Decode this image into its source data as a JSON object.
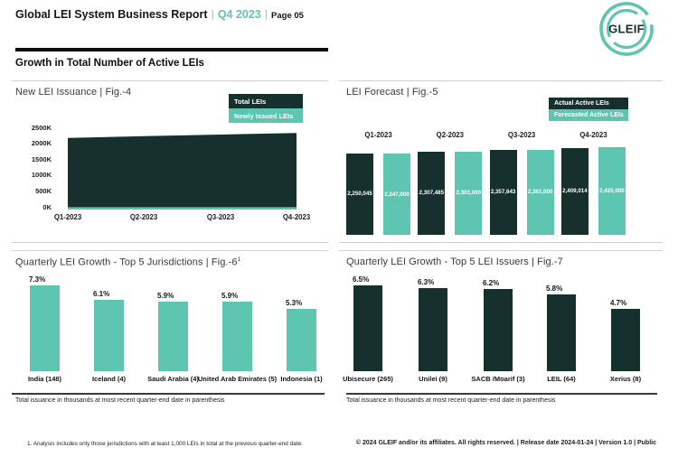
{
  "header": {
    "title": "Global LEI System Business Report",
    "separator": "|",
    "period": "Q4 2023",
    "page_label": "Page 05",
    "logo_text": "GLEIF"
  },
  "section_title": "Growth in Total Number of Active LEIs",
  "colors": {
    "dark": "#16302e",
    "teal": "#5ec5b1"
  },
  "panels": {
    "issuance": {
      "title": "New LEI Issuance | Fig.-4",
      "legend": [
        "Total LEIs",
        "Newly Issued LEIs"
      ],
      "y_ticks": [
        "2500K",
        "2000K",
        "1500K",
        "1000K",
        "500K",
        "0K"
      ],
      "x_ticks": [
        "Q1-2023",
        "Q2-2023",
        "Q3-2023",
        "Q4-2023"
      ]
    },
    "forecast": {
      "title": "LEI Forecast | Fig.-5",
      "legend": [
        "Actual Active LEIs",
        "Forecasted Active LEIs"
      ]
    },
    "jurisdictions": {
      "title": "Quarterly LEI Growth - Top 5 Jurisdictions | Fig.-6",
      "title_superscript": "1",
      "note": "Total issuance in thousands at most recent quarter-end date in parenthesis"
    },
    "issuers": {
      "title": "Quarterly LEI Growth - Top 5 LEI Issuers | Fig.-7",
      "note": "Total issuance in thousands at most recent quarter-end date in parenthesis"
    }
  },
  "chart_data": [
    {
      "type": "area",
      "title": "New LEI Issuance",
      "fig": "Fig.-4",
      "x": [
        "Q1-2023",
        "Q2-2023",
        "Q3-2023",
        "Q4-2023"
      ],
      "series": [
        {
          "name": "Total LEIs",
          "values": [
            2250045,
            2307485,
            2357643,
            2409014
          ]
        },
        {
          "name": "Newly Issued LEIs",
          "values": [
            60000,
            60000,
            60000,
            60000
          ],
          "estimated": true
        }
      ],
      "ylim": [
        0,
        2500000
      ],
      "y_tick_labels": [
        "0K",
        "500K",
        "1000K",
        "1500K",
        "2000K",
        "2500K"
      ],
      "legend_position": "top-right",
      "grid": false
    },
    {
      "type": "bar",
      "title": "LEI Forecast",
      "fig": "Fig.-5",
      "categories": [
        "Q1-2023",
        "Q2-2023",
        "Q3-2023",
        "Q4-2023"
      ],
      "series": [
        {
          "name": "Actual Active LEIs",
          "values": [
            2250045,
            2307485,
            2357643,
            2409014
          ]
        },
        {
          "name": "Forecasted Active LEIs",
          "values": [
            2247000,
            2302000,
            2361000,
            2425000
          ]
        }
      ],
      "data_labels": true,
      "legend_position": "top-right",
      "grid": false
    },
    {
      "type": "bar",
      "title": "Quarterly LEI Growth - Top 5 Jurisdictions",
      "fig": "Fig.-6",
      "categories": [
        "India (148)",
        "Iceland (4)",
        "Saudi Arabia (4)",
        "United Arab Emirates (5)",
        "Indonesia (1)"
      ],
      "values": [
        7.3,
        6.1,
        5.9,
        5.9,
        5.3
      ],
      "unit": "%",
      "data_labels": true,
      "grid": false
    },
    {
      "type": "bar",
      "title": "Quarterly LEI Growth - Top 5 LEI Issuers",
      "fig": "Fig.-7",
      "categories": [
        "Ubisecure (265)",
        "Unilei (9)",
        "SACB /Moarif (3)",
        "LEIL (64)",
        "Xerius (8)"
      ],
      "values": [
        6.5,
        6.3,
        6.2,
        5.8,
        4.7
      ],
      "unit": "%",
      "data_labels": true,
      "grid": false
    }
  ],
  "footer": {
    "footnote": "1. Analysis includes only those jurisdictions with at least 1,000 LEIs in total at the previous quarter-end date.",
    "copyright": "© 2024 GLEIF and/or its affiliates. All rights reserved. | Release date 2024-01-24 | Version 1.0 | Public"
  }
}
